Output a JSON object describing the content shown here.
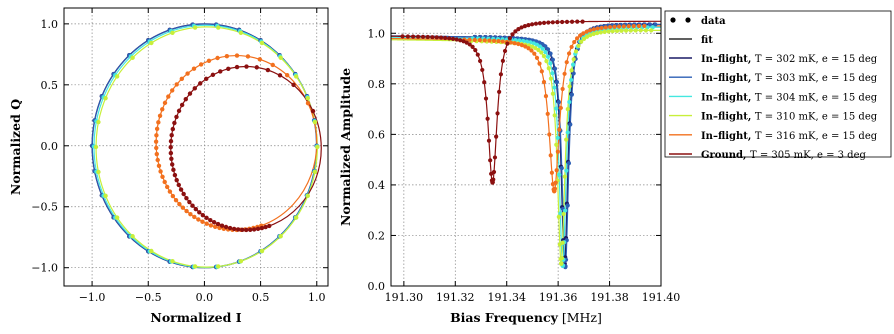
{
  "chart_data": [
    {
      "type": "scatter",
      "xlabel": "Normalized I",
      "ylabel": "Normalized Q",
      "xlim": [
        -1.25,
        1.1
      ],
      "ylim": [
        -1.15,
        1.13
      ],
      "xticks": [
        -1.0,
        -0.5,
        0.0,
        0.5,
        1.0
      ],
      "xtick_labels": [
        "−1.0",
        "−0.5",
        "0.0",
        "0.5",
        "1.0"
      ],
      "yticks": [
        -1.0,
        -0.5,
        0.0,
        0.5,
        1.0
      ],
      "ytick_labels": [
        "−1.0",
        "−0.5",
        "0.0",
        "0.5",
        "1.0"
      ],
      "grid": true,
      "circles": [
        {
          "name": "In–flight, T = 302 mK, e = 15 deg",
          "cx": 0.0,
          "cy": 0.0,
          "r": 1.0,
          "color": "#1a1a66"
        },
        {
          "name": "In–flight, T = 303 mK, e = 15 deg",
          "cx": 0.0,
          "cy": 0.0,
          "r": 0.998,
          "color": "#2c5fb5"
        },
        {
          "name": "In–flight, T = 304 mK, e = 15 deg",
          "cx": 0.01,
          "cy": -0.005,
          "r": 0.993,
          "color": "#44e8e0"
        },
        {
          "name": "In–flight, T = 310 mK, e = 15 deg",
          "cx": 0.02,
          "cy": -0.01,
          "r": 0.985,
          "color": "#c8ef3a"
        },
        {
          "name": "In–flight, T = 316 mK, e = 15 deg",
          "cx": 0.285,
          "cy": 0.025,
          "r": 0.715,
          "color": "#f2701e"
        },
        {
          "name": "Ground, T = 305 mK, e = 3 deg",
          "cx": 0.37,
          "cy": -0.02,
          "r": 0.67,
          "color": "#8b1010"
        }
      ]
    },
    {
      "type": "line",
      "xlabel": "Bias Frequency",
      "xlabel_unit": "[MHz]",
      "ylabel": "Normalized Amplitude",
      "xlim": [
        191.295,
        191.4
      ],
      "ylim": [
        0.0,
        1.1
      ],
      "xticks": [
        191.3,
        191.32,
        191.34,
        191.36,
        191.38,
        191.4
      ],
      "xtick_labels": [
        "191.30",
        "191.32",
        "191.34",
        "191.36",
        "191.38",
        "191.40"
      ],
      "yticks": [
        0.0,
        0.2,
        0.4,
        0.6,
        0.8,
        1.0
      ],
      "ytick_labels": [
        "0.0",
        "0.2",
        "0.4",
        "0.6",
        "0.8",
        "1.0"
      ],
      "grid": true,
      "series": [
        {
          "name": "In–flight, T = 302 mK, e = 15 deg",
          "color": "#1a1a66",
          "f0": 191.3625,
          "depth": 0.9,
          "width": 0.0016,
          "base": 0.99,
          "slope": -0.08,
          "over": 0.055
        },
        {
          "name": "In–flight, T = 303 mK, e = 15 deg",
          "color": "#2c5fb5",
          "f0": 191.3628,
          "depth": 0.91,
          "width": 0.0016,
          "base": 0.99,
          "slope": -0.08,
          "over": 0.055
        },
        {
          "name": "In–flight, T = 304 mK, e = 15 deg",
          "color": "#44e8e0",
          "f0": 191.3618,
          "depth": 0.9,
          "width": 0.0017,
          "base": 0.985,
          "slope": -0.09,
          "over": 0.05
        },
        {
          "name": "In–flight, T = 310 mK, e = 15 deg",
          "color": "#c8ef3a",
          "f0": 191.3612,
          "depth": 0.88,
          "width": 0.0018,
          "base": 0.975,
          "slope": -0.11,
          "over": 0.05
        },
        {
          "name": "In–flight, T = 316 mK, e = 15 deg",
          "color": "#f2701e",
          "f0": 191.3585,
          "depth": 0.6,
          "width": 0.0025,
          "base": 0.98,
          "slope": -0.08,
          "over": 0.06
        },
        {
          "name": "Ground, T = 305 mK, e = 3 deg",
          "color": "#8b1010",
          "f0": 191.3345,
          "depth": 0.58,
          "width": 0.0022,
          "base": 0.99,
          "slope": -0.02,
          "over": 0.06
        }
      ]
    }
  ],
  "legend": {
    "data_label": "data",
    "fit_label": "fit",
    "entries": [
      {
        "bold": "In–flight,",
        "rest": "T = 302 mK, e = 15 deg",
        "color": "#1a1a66"
      },
      {
        "bold": "In–flight,",
        "rest": "T = 303 mK, e = 15 deg",
        "color": "#2c5fb5"
      },
      {
        "bold": "In–flight,",
        "rest": "T = 304 mK, e = 15 deg",
        "color": "#44e8e0"
      },
      {
        "bold": "In–flight,",
        "rest": "T = 310 mK, e = 15 deg",
        "color": "#c8ef3a"
      },
      {
        "bold": "In–flight,",
        "rest": "T = 316 mK, e = 15 deg",
        "color": "#f2701e"
      },
      {
        "bold": "Ground,",
        "rest": "T = 305 mK, e = 3 deg",
        "color": "#8b1010"
      }
    ]
  }
}
